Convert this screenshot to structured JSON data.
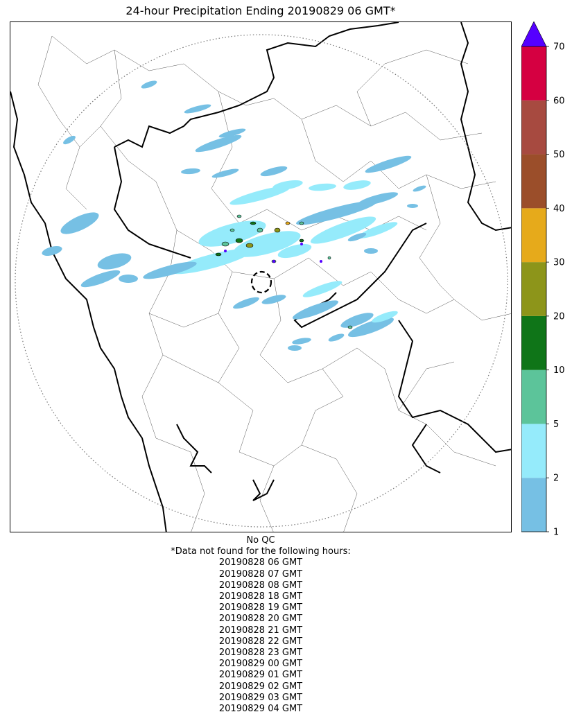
{
  "title": "24-hour Precipitation Ending 20190829 06 GMT*",
  "colorbar": {
    "ticks": [
      "1",
      "2",
      "5",
      "10",
      "20",
      "30",
      "40",
      "50",
      "60",
      "70"
    ],
    "bins": [
      {
        "from": "1",
        "to": "2",
        "color": "#76c0e4"
      },
      {
        "from": "2",
        "to": "5",
        "color": "#95ebfb"
      },
      {
        "from": "5",
        "to": "10",
        "color": "#5cc49a"
      },
      {
        "from": "10",
        "to": "20",
        "color": "#0f7518"
      },
      {
        "from": "20",
        "to": "30",
        "color": "#8d951a"
      },
      {
        "from": "30",
        "to": "40",
        "color": "#e6aa1b"
      },
      {
        "from": "40",
        "to": "50",
        "color": "#9b4e2a"
      },
      {
        "from": "50",
        "to": "60",
        "color": "#a74a40"
      },
      {
        "from": "60",
        "to": "70",
        "color": "#d50041"
      }
    ],
    "extend_color": "#5500ff"
  },
  "map": {
    "radar_range_ring": "dotted",
    "radar_site_ring": "dashed"
  },
  "footer": {
    "qc": "No QC",
    "note": "*Data not found for the following hours:",
    "missing_hours": [
      "20190828 06 GMT",
      "20190828 07 GMT",
      "20190828 08 GMT",
      "20190828 18 GMT",
      "20190828 19 GMT",
      "20190828 20 GMT",
      "20190828 21 GMT",
      "20190828 22 GMT",
      "20190828 23 GMT",
      "20190829 00 GMT",
      "20190829 01 GMT",
      "20190829 02 GMT",
      "20190829 03 GMT",
      "20190829 04 GMT"
    ]
  }
}
